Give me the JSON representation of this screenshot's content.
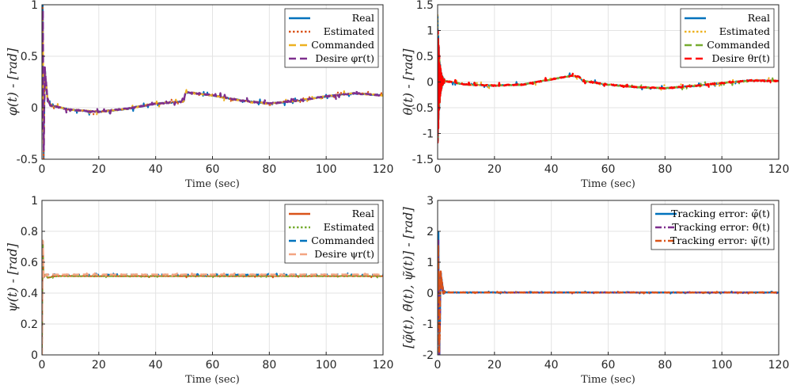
{
  "chart_data": [
    {
      "type": "line",
      "title": "",
      "xlabel": "Time (sec)",
      "ylabel": "φ(t) - [rad]",
      "xlim": [
        0,
        120
      ],
      "ylim": [
        -0.5,
        1
      ],
      "xticks": [
        "0",
        "20",
        "40",
        "60",
        "80",
        "100",
        "120"
      ],
      "yticks": [
        "-0.5",
        "0",
        "0.5",
        "1"
      ],
      "grid": true,
      "legend_position": "top-right",
      "series": [
        {
          "name": "Real",
          "color": "#0072BD",
          "style": "solid"
        },
        {
          "name": "Estimated",
          "color": "#D95319",
          "style": "dotted"
        },
        {
          "name": "Commanded",
          "color": "#EDB120",
          "style": "dashed"
        },
        {
          "name": "Desire φr(t)",
          "color": "#7E2F8E",
          "style": "dashed"
        }
      ],
      "x": [
        0,
        0.3,
        0.6,
        1,
        2,
        3,
        5,
        10,
        20,
        30,
        40,
        49.9,
        50.5,
        60,
        70,
        80,
        90,
        100,
        110,
        120
      ],
      "values": [
        0,
        1.0,
        -0.5,
        0.35,
        0.08,
        0.02,
        0.01,
        -0.02,
        -0.04,
        -0.01,
        0.04,
        0.06,
        0.15,
        0.12,
        0.07,
        0.04,
        0.07,
        0.11,
        0.14,
        0.12
      ]
    },
    {
      "type": "line",
      "title": "",
      "xlabel": "Time (sec)",
      "ylabel": "θ(t) - [rad]",
      "xlim": [
        0,
        120
      ],
      "ylim": [
        -1.5,
        1.5
      ],
      "xticks": [
        "0",
        "20",
        "40",
        "60",
        "80",
        "100",
        "120"
      ],
      "yticks": [
        "-1.5",
        "-1",
        "-0.5",
        "0",
        "0.5",
        "1",
        "1.5"
      ],
      "grid": true,
      "legend_position": "top-right",
      "series": [
        {
          "name": "Real",
          "color": "#0072BD",
          "style": "solid"
        },
        {
          "name": "Estimated",
          "color": "#EDB120",
          "style": "dotted"
        },
        {
          "name": "Commanded",
          "color": "#77AC30",
          "style": "dashed"
        },
        {
          "name": "Desire θr(t)",
          "color": "#FF0000",
          "style": "dashed"
        }
      ],
      "x": [
        0,
        2,
        5,
        10,
        20,
        30,
        40,
        47,
        50,
        51,
        60,
        70,
        80,
        90,
        100,
        110,
        120
      ],
      "values": [
        0,
        0.02,
        0.0,
        -0.05,
        -0.07,
        -0.05,
        0.05,
        0.12,
        0.1,
        0.02,
        -0.05,
        -0.1,
        -0.12,
        -0.08,
        -0.02,
        0.03,
        0.02
      ]
    },
    {
      "type": "line",
      "title": "",
      "xlabel": "Time (sec)",
      "ylabel": "ψ(t) - [rad]",
      "xlim": [
        0,
        120
      ],
      "ylim": [
        0,
        1
      ],
      "xticks": [
        "0",
        "20",
        "40",
        "60",
        "80",
        "100",
        "120"
      ],
      "yticks": [
        "0",
        "0.2",
        "0.4",
        "0.6",
        "0.8",
        "1"
      ],
      "grid": true,
      "legend_position": "top-right",
      "series": [
        {
          "name": "Real",
          "color": "#D95319",
          "style": "solid"
        },
        {
          "name": "Estimated",
          "color": "#77AC30",
          "style": "dotted"
        },
        {
          "name": "Commanded",
          "color": "#0072BD",
          "style": "dashed"
        },
        {
          "name": "Desire ψr(t)",
          "color": "#F4A582",
          "style": "dashed"
        }
      ],
      "x": [
        0,
        0.3,
        0.6,
        1.2,
        2,
        5,
        10,
        120
      ],
      "values": [
        0,
        0.76,
        0.5,
        0.52,
        0.5,
        0.51,
        0.51,
        0.51
      ],
      "desired": 0.52
    },
    {
      "type": "line",
      "title": "",
      "xlabel": "Time (sec)",
      "ylabel": "[φ̃(t), θ̃(t), ψ̃(t)] - [rad]",
      "xlim": [
        0,
        120
      ],
      "ylim": [
        -2,
        3
      ],
      "xticks": [
        "0",
        "20",
        "40",
        "60",
        "80",
        "100",
        "120"
      ],
      "yticks": [
        "-2",
        "-1",
        "0",
        "1",
        "2",
        "3"
      ],
      "grid": true,
      "legend_position": "top-right",
      "series": [
        {
          "name": "Tracking error: φ̃(t)",
          "color": "#0072BD",
          "style": "solid"
        },
        {
          "name": "Tracking error: θ̃(t)",
          "color": "#7E2F8E",
          "style": "dashdot"
        },
        {
          "name": "Tracking error: ψ̃(t)",
          "color": "#D95319",
          "style": "dashdot"
        }
      ],
      "x": [
        0,
        0.3,
        0.6,
        1,
        2,
        5,
        120
      ],
      "values": [
        0,
        1.1,
        -2.0,
        0.5,
        0.03,
        0.02,
        0.02
      ]
    }
  ]
}
